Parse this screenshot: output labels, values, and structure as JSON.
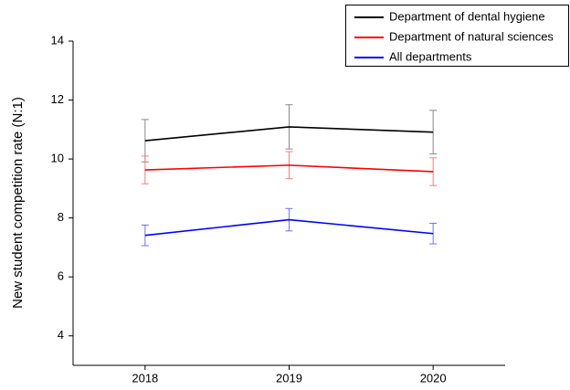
{
  "chart_data": {
    "type": "line",
    "y_label": "New student competition rate (N:1)",
    "x": [
      2018,
      2019,
      2020
    ],
    "series": [
      {
        "name": "Department of dental hygiene",
        "color": "#000000",
        "error_color": "#888888",
        "values": [
          10.62,
          11.09,
          10.91
        ],
        "errors": [
          0.72,
          0.75,
          0.74
        ]
      },
      {
        "name": "Department of natural sciences",
        "color": "#ff0000",
        "error_color": "#f08080",
        "values": [
          9.63,
          9.79,
          9.57
        ],
        "errors": [
          0.47,
          0.46,
          0.47
        ]
      },
      {
        "name": "All departments",
        "color": "#0000ff",
        "error_color": "#7070ff",
        "values": [
          7.41,
          7.94,
          7.47
        ],
        "errors": [
          0.35,
          0.38,
          0.35
        ]
      }
    ],
    "xlim": [
      2017.5,
      2020.5
    ],
    "xticks": [
      2018,
      2019,
      2020
    ],
    "ylim": [
      3,
      14
    ],
    "yticks": [
      4,
      6,
      8,
      10,
      12,
      14
    ],
    "grid": false,
    "legend": "top-right"
  }
}
